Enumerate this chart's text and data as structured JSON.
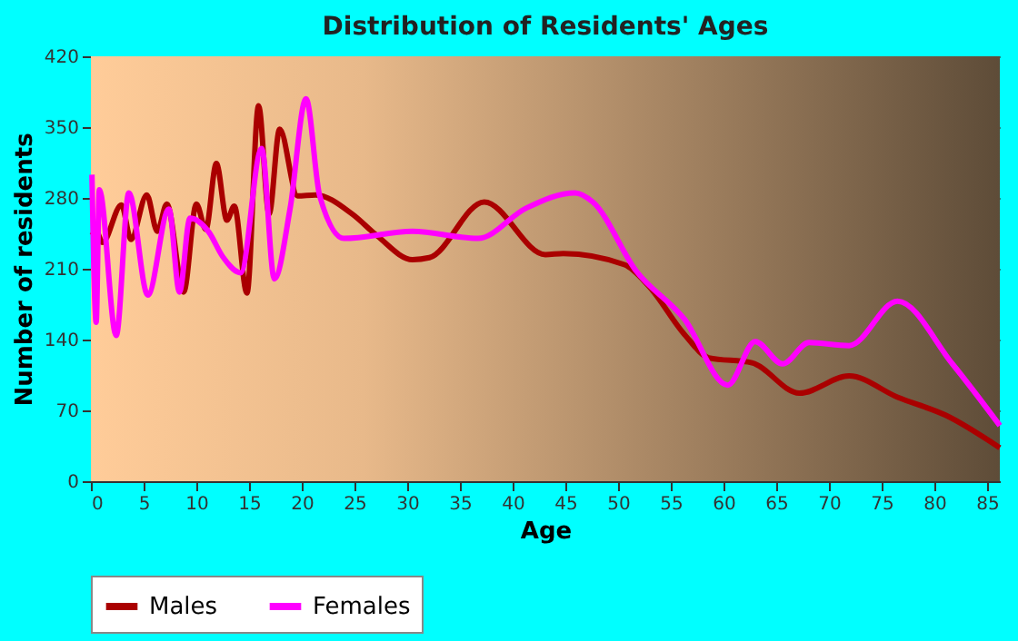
{
  "chart_data": {
    "type": "line",
    "title": "Distribution of Residents' Ages",
    "xlabel": "Age",
    "ylabel": "Number of residents",
    "xlim": [
      0,
      86.2
    ],
    "xticks": [
      0,
      5,
      10,
      15,
      20,
      25,
      30,
      35,
      40,
      45,
      50,
      55,
      60,
      65,
      70,
      75,
      80,
      85
    ],
    "ylim": [
      0,
      420
    ],
    "yticks": [
      0,
      70,
      140,
      210,
      280,
      350,
      420
    ],
    "grid": true,
    "legend": "bottom",
    "line_style": "solid",
    "marker": "none",
    "series": [
      {
        "name": "Males",
        "color": "#aa0000",
        "x": [
          0.1,
          0.5,
          1.1,
          2.9,
          3.8,
          5.3,
          6.3,
          7.2,
          8.8,
          10.0,
          10.9,
          11.9,
          12.9,
          13.6,
          14.8,
          15.9,
          16.9,
          17.9,
          19.6,
          21.3,
          24.8,
          27.1,
          30.5,
          32.1,
          37.3,
          43.1,
          44.8,
          50.6,
          52.9,
          56.3,
          58.6,
          62.7,
          67.2,
          71.9,
          76.5,
          81.1,
          86.2
        ],
        "values": [
          243,
          247,
          236,
          273,
          239,
          283,
          247,
          274,
          187,
          274,
          249,
          314,
          258,
          272,
          186,
          371,
          264,
          348,
          282,
          283,
          264,
          243,
          219,
          221,
          276,
          224,
          225,
          214,
          193,
          145,
          122,
          117,
          87,
          104,
          83,
          65,
          33
        ]
      },
      {
        "name": "Females",
        "color": "#ff00ff",
        "x": [
          0.1,
          0.5,
          0.8,
          2.4,
          3.6,
          5.4,
          7.4,
          8.4,
          9.4,
          11.2,
          12.5,
          14.2,
          16.2,
          17.4,
          18.9,
          20.4,
          21.7,
          24.0,
          30.5,
          36.7,
          41.3,
          45.9,
          47.6,
          51.7,
          56.3,
          60.4,
          63.0,
          65.6,
          68.1,
          71.9,
          76.5,
          81.7,
          86.2
        ],
        "values": [
          303,
          157,
          288,
          144,
          285,
          184,
          269,
          187,
          260,
          246,
          222,
          206,
          329,
          200,
          270,
          378,
          282,
          240,
          247,
          240,
          270,
          285,
          276,
          208,
          160,
          95,
          138,
          116,
          137,
          134,
          178,
          116,
          55
        ]
      }
    ]
  }
}
